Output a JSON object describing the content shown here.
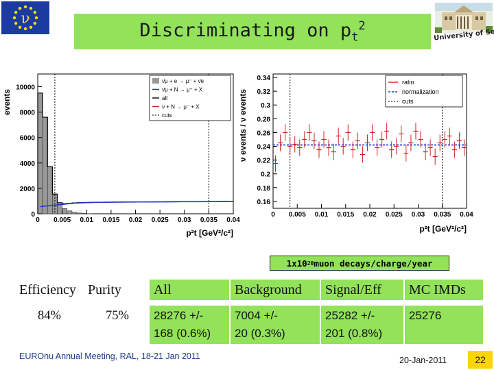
{
  "title": {
    "prefix": "Discriminating on p",
    "sub": "t",
    "sup": "2"
  },
  "logos": {
    "eu_flag": "eu-flag",
    "university": "University of Sofia"
  },
  "colors": {
    "title_bg": "#92e25a",
    "page_badge": "#ffd400",
    "ratio": "#cc2222",
    "normalization": "#2233cc",
    "hist_fill": "#999999"
  },
  "chart_data": [
    {
      "type": "histogram",
      "ylabel": "events",
      "xlabel": "p²t [GeV²/c²]",
      "xlim": [
        0,
        0.04
      ],
      "ylim": [
        0,
        11000
      ],
      "xticks": [
        "0",
        "0.005",
        "0.01",
        "0.015",
        "0.02",
        "0.025",
        "0.03",
        "0.035",
        "0.04"
      ],
      "yticks": [
        "0",
        "2000",
        "4000",
        "6000",
        "8000",
        "10000"
      ],
      "legend": [
        "ν̄μ + e → μ⁻ + ν̄e",
        "ν̄μ + N → μ⁺ + X",
        "all",
        "ν + N → μ⁻ + X",
        "cuts"
      ],
      "legend_position": "top-right",
      "cuts": [
        0.0035,
        0.035
      ],
      "bin_width": 0.001,
      "background_bins": [
        9500,
        7600,
        3700,
        1550,
        780,
        410,
        230,
        120,
        60,
        30,
        10
      ],
      "all_bins": [
        9500,
        7600,
        3700,
        1550,
        870,
        800,
        820,
        860,
        880,
        890,
        900,
        905,
        910,
        910,
        915,
        920,
        920,
        925,
        925,
        930,
        930,
        935,
        935,
        940,
        940,
        940,
        945,
        945,
        950,
        950,
        950,
        955,
        955,
        960,
        960,
        960,
        965,
        965,
        970,
        970
      ],
      "signal_bins": [
        560,
        600,
        640,
        680,
        720,
        760,
        800,
        830,
        850,
        870,
        880,
        890,
        900,
        905,
        910,
        915,
        920,
        920,
        925,
        925,
        930,
        930,
        935,
        935,
        940,
        940,
        940,
        945,
        945,
        950,
        950,
        950,
        955,
        955,
        960,
        960,
        960,
        965,
        965,
        970
      ]
    },
    {
      "type": "scatter",
      "ylabel": "ν events / ν̄ events",
      "xlabel": "p²t [GeV²/c²]",
      "xlim": [
        0,
        0.04
      ],
      "ylim": [
        0.15,
        0.345
      ],
      "xticks": [
        "0",
        "0.005",
        "0.01",
        "0.015",
        "0.02",
        "0.025",
        "0.03",
        "0.035",
        "0.04"
      ],
      "yticks": [
        "0.16",
        "0.18",
        "0.2",
        "0.22",
        "0.24",
        "0.26",
        "0.28",
        "0.3",
        "0.32",
        "0.34"
      ],
      "legend": [
        "ratio",
        "normalization",
        "cuts"
      ],
      "legend_position": "top-right",
      "normalization": 0.242,
      "cuts": [
        0.0035,
        0.035
      ],
      "x": [
        0.0005,
        0.0015,
        0.0025,
        0.0035,
        0.0045,
        0.0055,
        0.0065,
        0.0075,
        0.0085,
        0.0095,
        0.0105,
        0.0115,
        0.0125,
        0.0135,
        0.0145,
        0.0155,
        0.0165,
        0.0175,
        0.0185,
        0.0195,
        0.0205,
        0.0215,
        0.0225,
        0.0235,
        0.0245,
        0.0255,
        0.0265,
        0.0275,
        0.0285,
        0.0295,
        0.0305,
        0.0315,
        0.0325,
        0.0335,
        0.0345,
        0.0355,
        0.0365,
        0.0375,
        0.0385,
        0.0395
      ],
      "ratio": [
        0.215,
        0.245,
        0.26,
        0.24,
        0.243,
        0.238,
        0.25,
        0.26,
        0.248,
        0.235,
        0.25,
        0.238,
        0.232,
        0.255,
        0.24,
        0.26,
        0.235,
        0.248,
        0.228,
        0.245,
        0.26,
        0.238,
        0.25,
        0.262,
        0.235,
        0.24,
        0.258,
        0.23,
        0.245,
        0.262,
        0.25,
        0.232,
        0.238,
        0.225,
        0.245,
        0.25,
        0.255,
        0.235,
        0.248,
        0.238
      ],
      "error": [
        0.012,
        0.012,
        0.012,
        0.012,
        0.012,
        0.012,
        0.012,
        0.012,
        0.012,
        0.012,
        0.012,
        0.012,
        0.012,
        0.012,
        0.012,
        0.012,
        0.012,
        0.012,
        0.012,
        0.012,
        0.012,
        0.012,
        0.012,
        0.012,
        0.012,
        0.012,
        0.012,
        0.012,
        0.012,
        0.012,
        0.012,
        0.012,
        0.012,
        0.012,
        0.012,
        0.012,
        0.012,
        0.012,
        0.012,
        0.012
      ]
    }
  ],
  "lumi": {
    "prefix": "1x10",
    "exp": "20",
    "suffix": " muon decays/charge/year"
  },
  "stats": {
    "headers": {
      "efficiency": "Efficiency",
      "purity": "Purity",
      "all": "All",
      "background": "Background",
      "signal": "Signal/Eff",
      "mc": "MC IMDs"
    },
    "values": {
      "efficiency": "84%",
      "purity": "75%",
      "all_1": "28276 +/-",
      "all_2": "168 (0.6%)",
      "background_1": "7004 +/-",
      "background_2": "20 (0.3%)",
      "signal_1": "25282 +/-",
      "signal_2": "201 (0.8%)",
      "mc": "25276"
    }
  },
  "footer": {
    "meeting": "EUROnu Annual Meeting, RAL, 18-21 Jan 2011",
    "date": "20-Jan-2011",
    "page": "22"
  }
}
